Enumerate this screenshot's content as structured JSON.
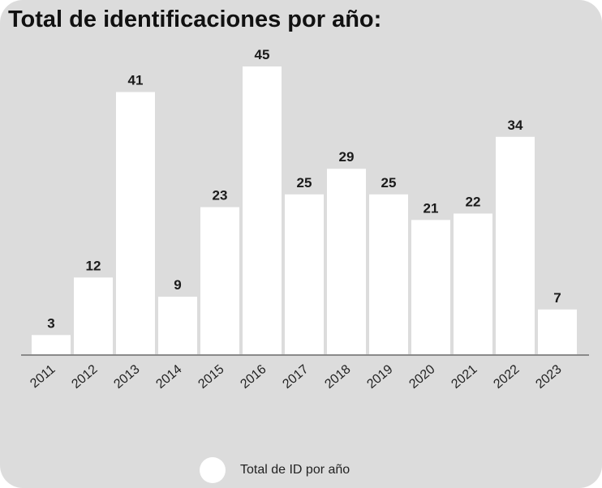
{
  "chart_data": {
    "type": "bar",
    "title": "Total de identificaciones por año:",
    "categories": [
      "2011",
      "2012",
      "2013",
      "2014",
      "2015",
      "2016",
      "2017",
      "2018",
      "2019",
      "2020",
      "2021",
      "2022",
      "2023"
    ],
    "series": [
      {
        "name": "Total de ID por año",
        "values": [
          3,
          12,
          41,
          9,
          23,
          45,
          25,
          29,
          25,
          21,
          22,
          34,
          7
        ]
      }
    ],
    "xlabel": "",
    "ylabel": "",
    "ylim": [
      0,
      45
    ],
    "grid": false,
    "legend_position": "bottom-center",
    "bar_color": "#ffffff",
    "background_color": "#dcdcdc"
  }
}
